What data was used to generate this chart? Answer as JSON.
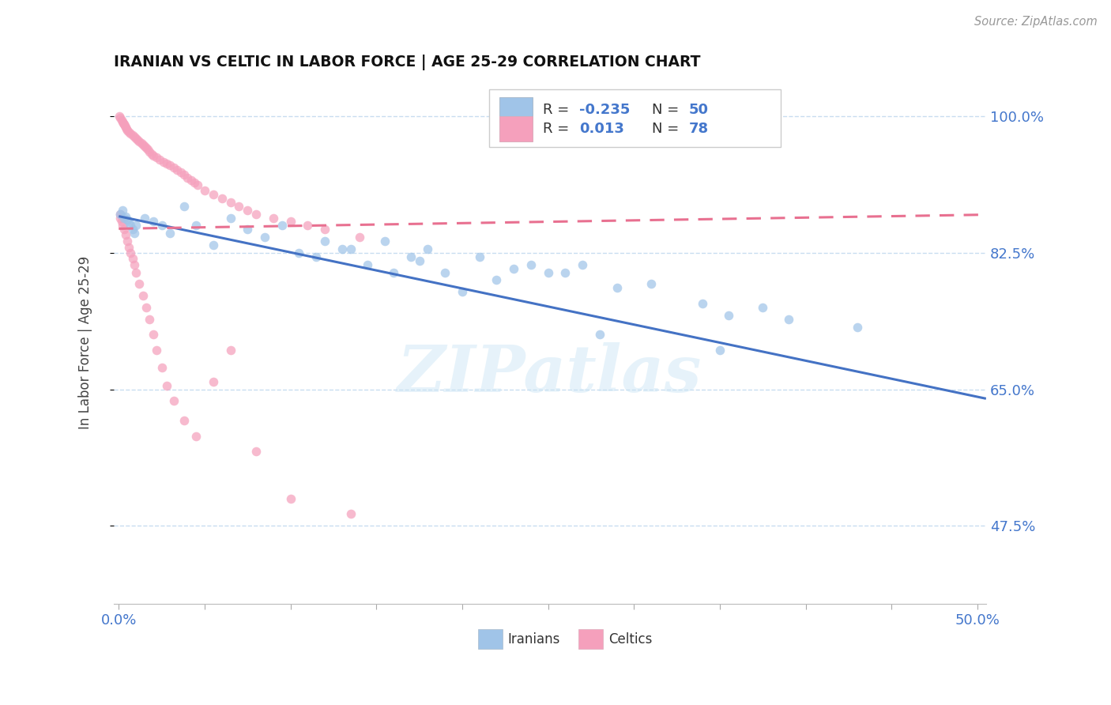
{
  "title": "IRANIAN VS CELTIC IN LABOR FORCE | AGE 25-29 CORRELATION CHART",
  "source_text": "Source: ZipAtlas.com",
  "ylabel": "In Labor Force | Age 25-29",
  "xlim": [
    -0.003,
    0.505
  ],
  "ylim": [
    0.375,
    1.045
  ],
  "ytick_positions": [
    0.475,
    0.65,
    0.825,
    1.0
  ],
  "ytick_labels": [
    "47.5%",
    "65.0%",
    "82.5%",
    "100.0%"
  ],
  "watermark_text": "ZIPatlas",
  "blue_color": "#a0c4e8",
  "pink_color": "#f5a0bc",
  "trend_blue_color": "#4472c4",
  "trend_pink_color": "#e87090",
  "R_iranian": "-0.235",
  "N_iranian": "50",
  "R_celtic": "0.013",
  "N_celtic": "78",
  "blue_trend_x0": 0.0,
  "blue_trend_y0": 0.872,
  "blue_trend_x1": 0.505,
  "blue_trend_y1": 0.638,
  "pink_trend_x0": 0.0,
  "pink_trend_y0": 0.856,
  "pink_trend_x1": 0.505,
  "pink_trend_y1": 0.874,
  "iranians_x": [
    0.001,
    0.002,
    0.003,
    0.004,
    0.005,
    0.006,
    0.007,
    0.008,
    0.009,
    0.01,
    0.015,
    0.02,
    0.025,
    0.03,
    0.038,
    0.045,
    0.055,
    0.065,
    0.075,
    0.085,
    0.095,
    0.105,
    0.115,
    0.13,
    0.145,
    0.16,
    0.175,
    0.19,
    0.21,
    0.23,
    0.25,
    0.27,
    0.29,
    0.31,
    0.34,
    0.355,
    0.375,
    0.39,
    0.28,
    0.18,
    0.155,
    0.135,
    0.12,
    0.2,
    0.22,
    0.17,
    0.24,
    0.35,
    0.43,
    0.26
  ],
  "iranians_y": [
    0.875,
    0.88,
    0.87,
    0.872,
    0.868,
    0.865,
    0.86,
    0.855,
    0.85,
    0.86,
    0.87,
    0.865,
    0.86,
    0.85,
    0.885,
    0.86,
    0.835,
    0.87,
    0.855,
    0.845,
    0.86,
    0.825,
    0.82,
    0.83,
    0.81,
    0.8,
    0.815,
    0.8,
    0.82,
    0.805,
    0.8,
    0.81,
    0.78,
    0.785,
    0.76,
    0.745,
    0.755,
    0.74,
    0.72,
    0.83,
    0.84,
    0.83,
    0.84,
    0.775,
    0.79,
    0.82,
    0.81,
    0.7,
    0.73,
    0.8
  ],
  "celtics_x": [
    0.0005,
    0.001,
    0.0015,
    0.002,
    0.0025,
    0.003,
    0.0035,
    0.004,
    0.0045,
    0.005,
    0.006,
    0.007,
    0.008,
    0.009,
    0.01,
    0.011,
    0.012,
    0.013,
    0.014,
    0.015,
    0.016,
    0.017,
    0.018,
    0.019,
    0.02,
    0.022,
    0.024,
    0.026,
    0.028,
    0.03,
    0.032,
    0.034,
    0.036,
    0.038,
    0.04,
    0.042,
    0.044,
    0.046,
    0.05,
    0.055,
    0.06,
    0.065,
    0.07,
    0.075,
    0.08,
    0.09,
    0.1,
    0.11,
    0.12,
    0.14,
    0.0008,
    0.001,
    0.0015,
    0.002,
    0.003,
    0.004,
    0.005,
    0.006,
    0.007,
    0.008,
    0.009,
    0.01,
    0.012,
    0.014,
    0.016,
    0.018,
    0.02,
    0.022,
    0.025,
    0.028,
    0.032,
    0.038,
    0.045,
    0.055,
    0.065,
    0.08,
    0.1,
    0.135
  ],
  "celtics_y": [
    1.0,
    0.998,
    0.995,
    0.993,
    0.991,
    0.99,
    0.988,
    0.986,
    0.984,
    0.982,
    0.98,
    0.978,
    0.976,
    0.974,
    0.972,
    0.97,
    0.968,
    0.966,
    0.964,
    0.962,
    0.96,
    0.958,
    0.955,
    0.952,
    0.95,
    0.948,
    0.945,
    0.942,
    0.94,
    0.937,
    0.934,
    0.931,
    0.928,
    0.925,
    0.921,
    0.918,
    0.915,
    0.912,
    0.905,
    0.9,
    0.895,
    0.89,
    0.885,
    0.88,
    0.875,
    0.87,
    0.865,
    0.86,
    0.855,
    0.845,
    0.875,
    0.87,
    0.865,
    0.86,
    0.855,
    0.848,
    0.84,
    0.832,
    0.825,
    0.818,
    0.81,
    0.8,
    0.785,
    0.77,
    0.755,
    0.74,
    0.72,
    0.7,
    0.678,
    0.655,
    0.635,
    0.61,
    0.59,
    0.66,
    0.7,
    0.57,
    0.51,
    0.49
  ]
}
